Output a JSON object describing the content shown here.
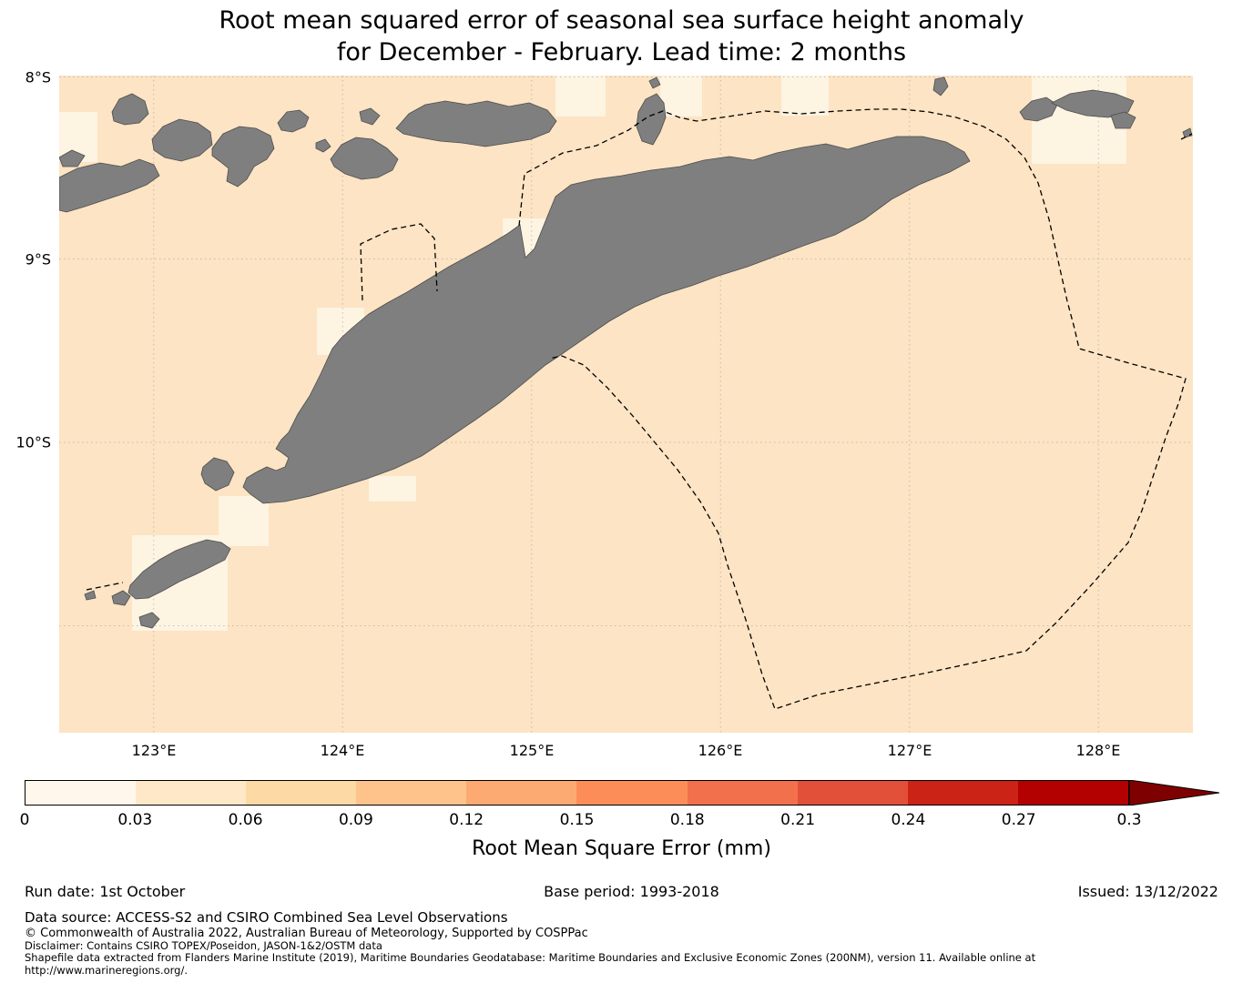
{
  "title": {
    "line1": "Root mean squared error of seasonal sea surface height anomaly",
    "line2": "for December - February. Lead time: 2 months"
  },
  "map": {
    "lat_ticks": [
      "8°S",
      "9°S",
      "10°S"
    ],
    "lon_ticks": [
      "123°E",
      "124°E",
      "125°E",
      "126°E",
      "127°E",
      "128°E"
    ],
    "ocean_color": "#fce4c4",
    "low_value_cell_color": "#fdf4e2",
    "land_color": "#7f7f7f",
    "boundary_color": "#000000"
  },
  "chart_data": {
    "type": "heatmap",
    "title": "Root mean squared error of seasonal sea surface height anomaly for December - February. Lead time: 2 months",
    "x_tick_labels": [
      "123°E",
      "124°E",
      "125°E",
      "126°E",
      "127°E",
      "128°E"
    ],
    "y_tick_labels": [
      "8°S",
      "9°S",
      "10°S"
    ],
    "x_range_deg_east": [
      122.5,
      128.5
    ],
    "y_range_deg_south": [
      8.0,
      11.6
    ],
    "grid": true,
    "values_note": "Ocean RMSE field is mostly in the 0.03-0.06 mm bin with scattered 0-0.03 mm cells; gray areas are land; dashed lines are maritime (EEZ) boundaries",
    "colorbar": {
      "label": "Root Mean Square Error (mm)",
      "ticks": [
        "0",
        "0.03",
        "0.06",
        "0.09",
        "0.12",
        "0.15",
        "0.18",
        "0.21",
        "0.24",
        "0.27",
        "0.3"
      ],
      "colors": [
        "#fff7ec",
        "#fee8c8",
        "#fdd9a6",
        "#fdc38b",
        "#fcaa72",
        "#fc8d59",
        "#f2704b",
        "#e2503a",
        "#cc2317",
        "#b30000"
      ],
      "arrow_color": "#7f0000"
    }
  },
  "footer": {
    "run_date": "Run date: 1st October",
    "base_period": "Base period: 1993-2018",
    "issued": "Issued: 13/12/2022",
    "data_source": "Data source: ACCESS-S2 and CSIRO Combined Sea Level Observations",
    "copyright": "© Commonwealth of Australia 2022, Australian Bureau of Meteorology, Supported by COSPPac",
    "disclaimer": "Disclaimer: Contains CSIRO TOPEX/Poseidon, JASON-1&2/OSTM data",
    "shapefile_line1": "Shapefile data extracted from Flanders Marine Institute (2019), Maritime Boundaries Geodatabase: Maritime Boundaries and Exclusive Economic Zones (200NM), version 11. Available online at",
    "shapefile_line2": "http://www.marineregions.org/."
  }
}
